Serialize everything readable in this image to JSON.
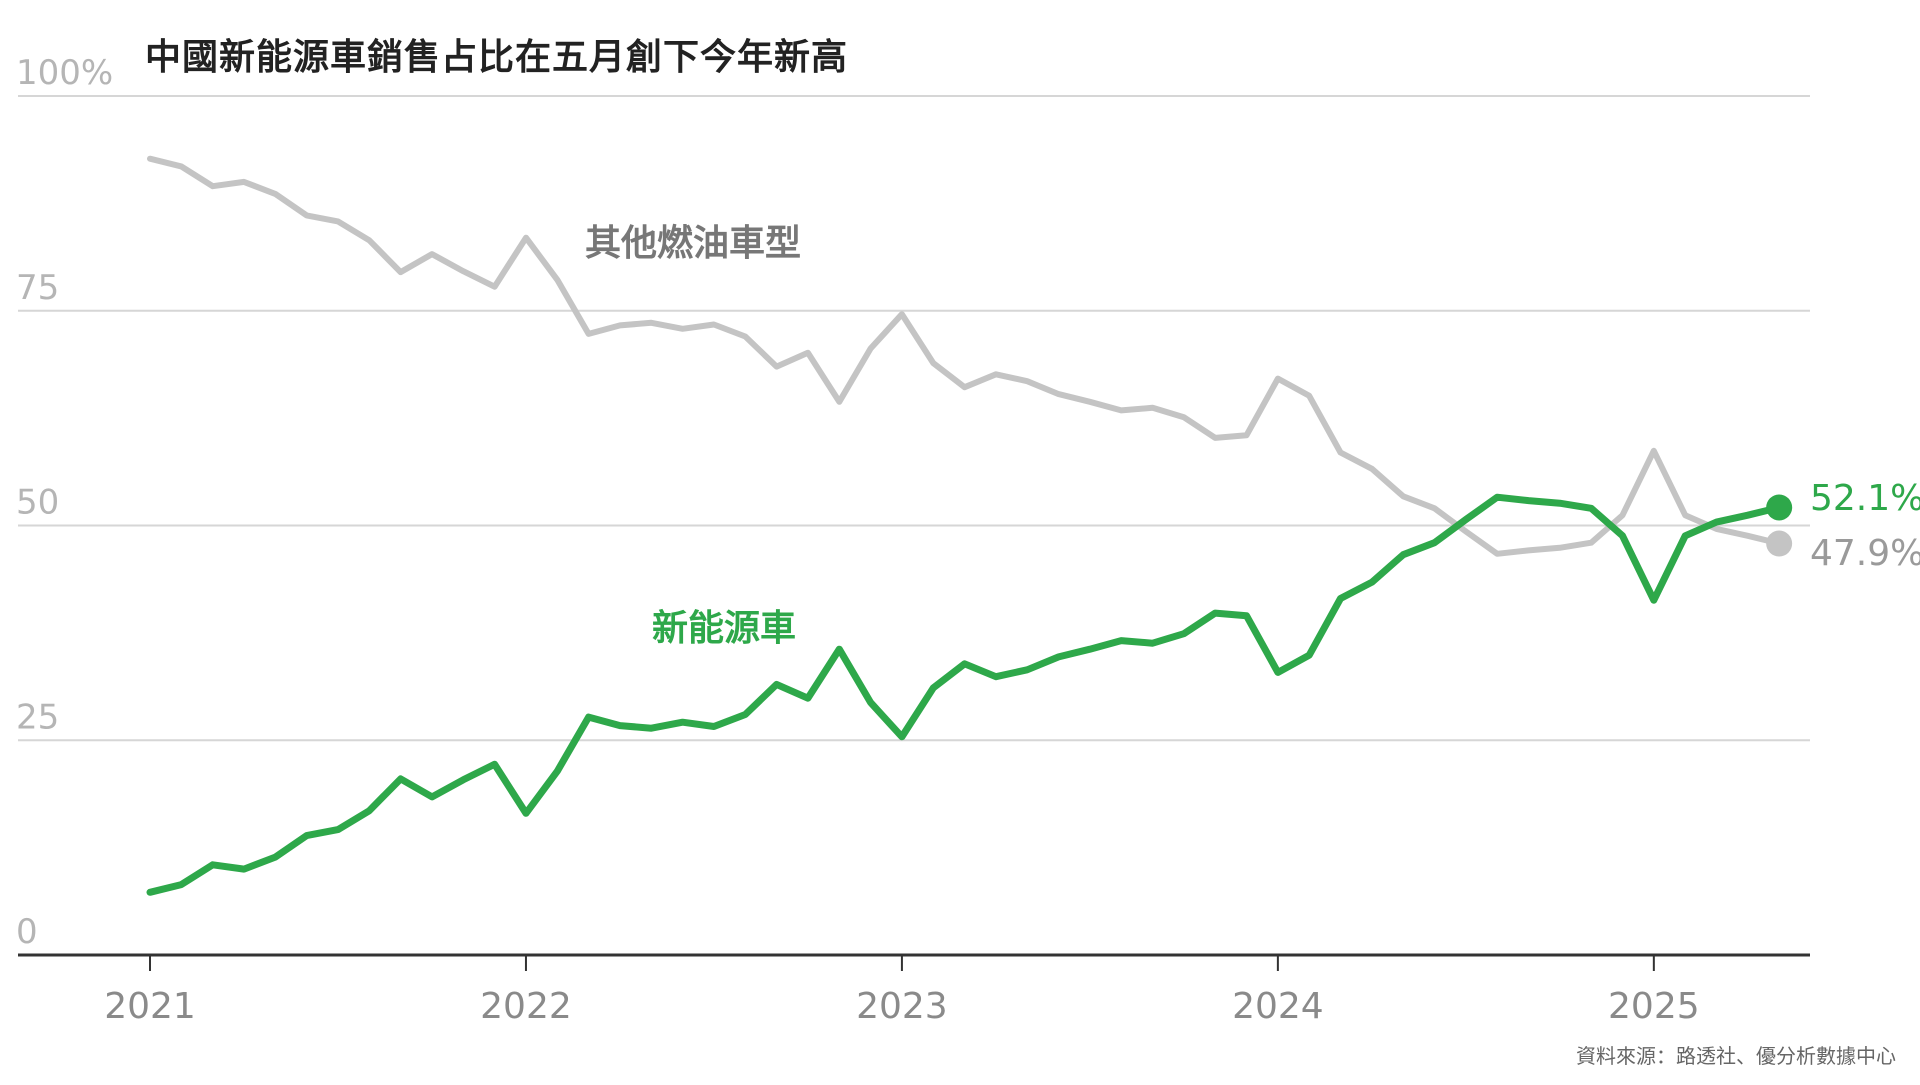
{
  "title": "中國新能源車銷售占比在五月創下今年新高",
  "source": "資料來源：路透社、優分析數據中心",
  "colors": {
    "nev": "#2ea84a",
    "ice": "#c4c4c4",
    "grid": "#d6d6d6",
    "axis": "#333333"
  },
  "chart_data": {
    "type": "line",
    "title": "中國新能源車銷售占比在五月創下今年新高",
    "xlabel": "",
    "ylabel": "",
    "ylim": [
      0,
      100
    ],
    "y_ticks": [
      {
        "value": 0,
        "label": "0"
      },
      {
        "value": 25,
        "label": "25"
      },
      {
        "value": 50,
        "label": "50"
      },
      {
        "value": 75,
        "label": "75"
      },
      {
        "value": 100,
        "label": "100%"
      }
    ],
    "x_ticks": [
      "2021",
      "2022",
      "2023",
      "2024",
      "2025"
    ],
    "grid": true,
    "x_start": "2021-01",
    "x": [
      "2021-01",
      "2021-02",
      "2021-03",
      "2021-04",
      "2021-05",
      "2021-06",
      "2021-07",
      "2021-08",
      "2021-09",
      "2021-10",
      "2021-11",
      "2021-12",
      "2022-01",
      "2022-02",
      "2022-03",
      "2022-04",
      "2022-05",
      "2022-06",
      "2022-07",
      "2022-08",
      "2022-09",
      "2022-10",
      "2022-11",
      "2022-12",
      "2023-01",
      "2023-02",
      "2023-03",
      "2023-04",
      "2023-05",
      "2023-06",
      "2023-07",
      "2023-08",
      "2023-09",
      "2023-10",
      "2023-11",
      "2023-12",
      "2024-01",
      "2024-02",
      "2024-03",
      "2024-04",
      "2024-05",
      "2024-06",
      "2024-07",
      "2024-08",
      "2024-09",
      "2024-10",
      "2024-11",
      "2024-12",
      "2025-01",
      "2025-02",
      "2025-03",
      "2025-04",
      "2025-05"
    ],
    "series": [
      {
        "name": "新能源車",
        "color": "#2ea84a",
        "end_label": "52.1%",
        "values": [
          7.3,
          8.2,
          10.5,
          10.0,
          11.4,
          13.9,
          14.6,
          16.8,
          20.5,
          18.4,
          20.4,
          22.2,
          16.5,
          21.4,
          27.7,
          26.7,
          26.4,
          27.1,
          26.6,
          28.0,
          31.5,
          29.9,
          35.6,
          29.4,
          25.4,
          31.1,
          33.9,
          32.4,
          33.2,
          34.7,
          35.6,
          36.6,
          36.3,
          37.4,
          39.8,
          39.5,
          32.9,
          34.9,
          41.5,
          43.4,
          46.6,
          48.0,
          50.7,
          53.3,
          52.9,
          52.6,
          52.0,
          48.8,
          41.3,
          48.8,
          50.4,
          51.2,
          52.1
        ]
      },
      {
        "name": "其他燃油車型",
        "color": "#c4c4c4",
        "end_label": "47.9%",
        "values": [
          92.7,
          91.8,
          89.5,
          90.0,
          88.6,
          86.1,
          85.4,
          83.2,
          79.5,
          81.6,
          79.6,
          77.8,
          83.5,
          78.6,
          72.3,
          73.3,
          73.6,
          72.9,
          73.4,
          72.0,
          68.5,
          70.1,
          64.4,
          70.6,
          74.6,
          68.9,
          66.1,
          67.6,
          66.8,
          65.3,
          64.4,
          63.4,
          63.7,
          62.6,
          60.2,
          60.5,
          67.1,
          65.1,
          58.5,
          56.6,
          53.4,
          52.0,
          49.3,
          46.7,
          47.1,
          47.4,
          48.0,
          51.2,
          58.7,
          51.2,
          49.6,
          48.8,
          47.9
        ]
      }
    ]
  }
}
